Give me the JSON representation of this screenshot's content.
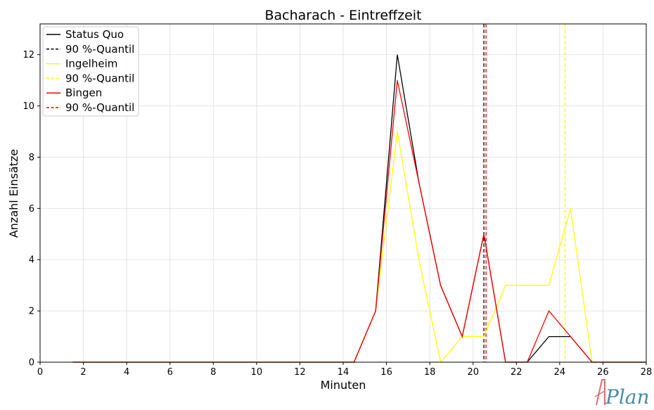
{
  "chart_data": {
    "type": "line",
    "title": "Bacharach - Eintreffzeit",
    "xlabel": "Minuten",
    "ylabel": "Anzahl Einsätze",
    "xlim": [
      0,
      28
    ],
    "ylim": [
      0,
      13.2
    ],
    "xticks": [
      0,
      2,
      4,
      6,
      8,
      10,
      12,
      14,
      16,
      18,
      20,
      22,
      24,
      26,
      28
    ],
    "yticks": [
      0,
      2,
      4,
      6,
      8,
      10,
      12
    ],
    "grid": true,
    "legend_position": "top-left",
    "series": [
      {
        "name": "Status Quo",
        "color": "#000000",
        "x": [
          1.5,
          2.5,
          3.5,
          4.5,
          5.5,
          6.5,
          7.5,
          8.5,
          9.5,
          10.5,
          11.5,
          12.5,
          13.5,
          14.5,
          15.5,
          16.5,
          17.5,
          18.5,
          19.5,
          20.5,
          21.5,
          22.5,
          23.5,
          24.5,
          25.5,
          26.5,
          27.5,
          28
        ],
        "values": [
          0,
          0,
          0,
          0,
          0,
          0,
          0,
          0,
          0,
          0,
          0,
          0,
          0,
          0,
          2,
          12,
          7,
          3,
          1,
          5,
          0,
          0,
          1,
          1,
          0,
          0,
          0,
          0
        ]
      },
      {
        "name": "Ingelheim",
        "color": "#ffff00",
        "x": [
          1.5,
          2.5,
          3.5,
          4.5,
          5.5,
          6.5,
          7.5,
          8.5,
          9.5,
          10.5,
          11.5,
          12.5,
          13.5,
          14.5,
          15.5,
          16.5,
          17.5,
          18.5,
          19.5,
          20.5,
          21.5,
          22.5,
          23.5,
          24.5,
          25.5,
          26.5,
          27.5,
          28
        ],
        "values": [
          0,
          0,
          0,
          0,
          0,
          0,
          0,
          0,
          0,
          0,
          0,
          0,
          0,
          0,
          2,
          9,
          4,
          0,
          1,
          1,
          3,
          3,
          3,
          6,
          0,
          0,
          0,
          0
        ]
      },
      {
        "name": "Bingen",
        "color": "#ff0000",
        "x": [
          1.5,
          2.5,
          3.5,
          4.5,
          5.5,
          6.5,
          7.5,
          8.5,
          9.5,
          10.5,
          11.5,
          12.5,
          13.5,
          14.5,
          15.5,
          16.5,
          17.5,
          18.5,
          19.5,
          20.5,
          21.5,
          22.5,
          23.5,
          24.5,
          25.5,
          26.5,
          27.5,
          28
        ],
        "values": [
          0,
          0,
          0,
          0,
          0,
          0,
          0,
          0,
          0,
          0,
          0,
          0,
          0,
          0,
          2,
          11,
          7,
          3,
          1,
          5,
          0,
          0,
          2,
          1,
          0,
          0,
          0,
          0
        ]
      }
    ],
    "quantiles": [
      {
        "name": "90 %-Quantil",
        "color": "#000000",
        "x": 20.5
      },
      {
        "name": "90 %-Quantil",
        "color": "#ffff00",
        "x": 24.25
      },
      {
        "name": "90 %-Quantil",
        "color": "#ff0000",
        "x": 20.6
      }
    ]
  },
  "logo": {
    "text": "Plan"
  }
}
